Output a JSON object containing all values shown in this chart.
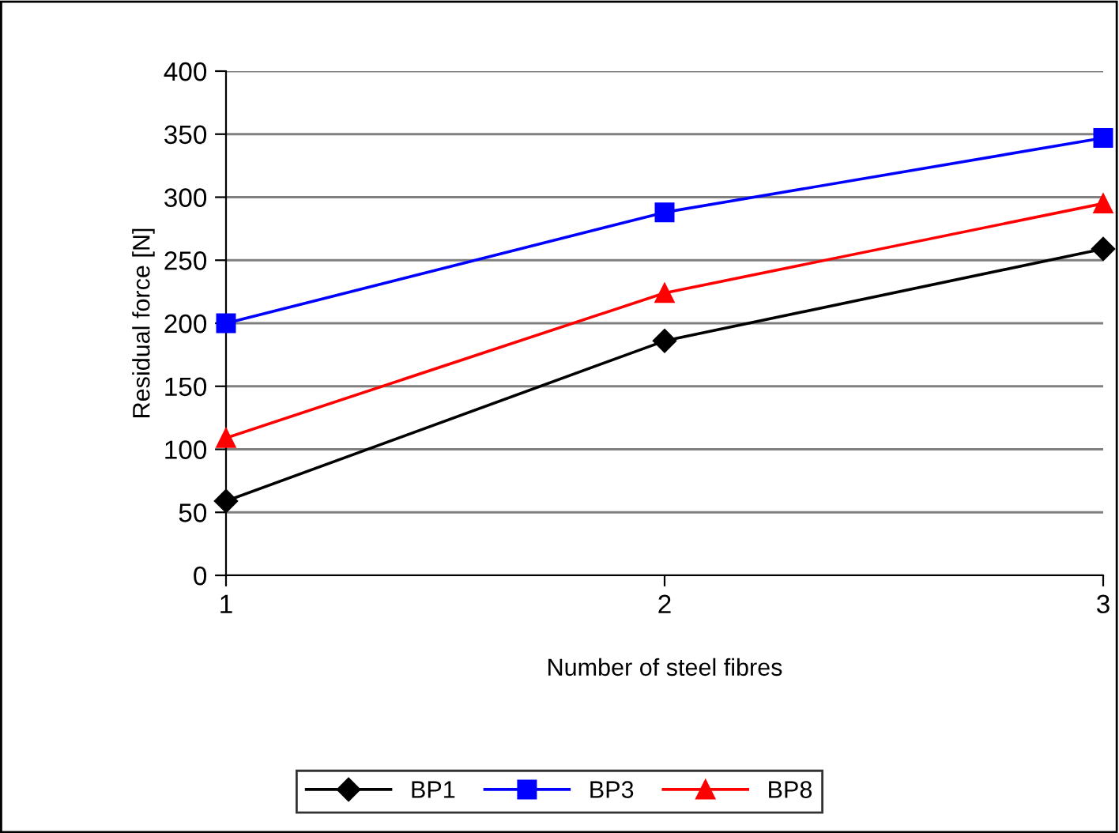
{
  "chart_data": {
    "type": "line",
    "xlabel": "Number of steel fibres",
    "ylabel": "Residual force [N]",
    "x": [
      1,
      2,
      3
    ],
    "xlim": [
      1,
      3
    ],
    "xticks": [
      1,
      2,
      3
    ],
    "ylim": [
      0,
      400
    ],
    "yticks": [
      0,
      50,
      100,
      150,
      200,
      250,
      300,
      350,
      400
    ],
    "grid": "y",
    "legend": "bottom",
    "line_style": "solid",
    "series": [
      {
        "name": "BP1",
        "color": "#000000",
        "marker": "diamond",
        "values": [
          59,
          186,
          259
        ]
      },
      {
        "name": "BP3",
        "color": "#0000ff",
        "marker": "square",
        "values": [
          200,
          288,
          347
        ]
      },
      {
        "name": "BP8",
        "color": "#ff0000",
        "marker": "triangle",
        "values": [
          109,
          224,
          295
        ]
      }
    ]
  }
}
